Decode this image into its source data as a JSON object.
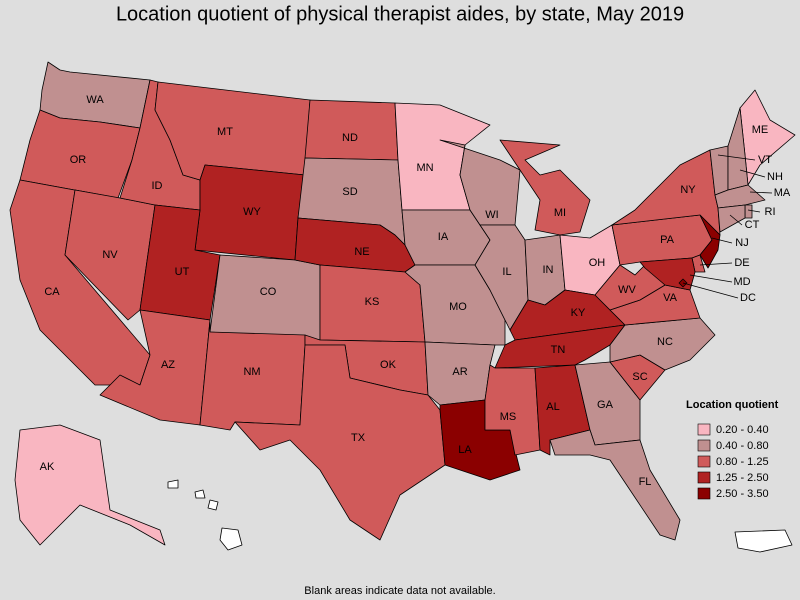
{
  "title": "Location quotient of physical therapist aides, by state, May 2019",
  "footnote": "Blank areas indicate data not available.",
  "legend": {
    "title": "Location quotient",
    "classes": [
      {
        "label": "0.20 - 0.40",
        "color": "#f9b6c1"
      },
      {
        "label": "0.40 - 0.80",
        "color": "#c09090"
      },
      {
        "label": "0.80 - 1.25",
        "color": "#d05a5a"
      },
      {
        "label": "1.25 - 2.50",
        "color": "#b02222"
      },
      {
        "label": "2.50 - 3.50",
        "color": "#8b0000"
      }
    ]
  },
  "states": [
    {
      "abbr": "WA",
      "class": 1
    },
    {
      "abbr": "OR",
      "class": 2
    },
    {
      "abbr": "CA",
      "class": 2
    },
    {
      "abbr": "NV",
      "class": 2
    },
    {
      "abbr": "ID",
      "class": 2
    },
    {
      "abbr": "MT",
      "class": 2
    },
    {
      "abbr": "WY",
      "class": 3
    },
    {
      "abbr": "UT",
      "class": 3
    },
    {
      "abbr": "CO",
      "class": 1
    },
    {
      "abbr": "AZ",
      "class": 2
    },
    {
      "abbr": "NM",
      "class": 2
    },
    {
      "abbr": "ND",
      "class": 2
    },
    {
      "abbr": "SD",
      "class": 1
    },
    {
      "abbr": "NE",
      "class": 3
    },
    {
      "abbr": "KS",
      "class": 2
    },
    {
      "abbr": "OK",
      "class": 2
    },
    {
      "abbr": "TX",
      "class": 2
    },
    {
      "abbr": "MN",
      "class": 0
    },
    {
      "abbr": "IA",
      "class": 1
    },
    {
      "abbr": "MO",
      "class": 1
    },
    {
      "abbr": "AR",
      "class": 1
    },
    {
      "abbr": "LA",
      "class": 4
    },
    {
      "abbr": "WI",
      "class": 1
    },
    {
      "abbr": "IL",
      "class": 1
    },
    {
      "abbr": "MI",
      "class": 2
    },
    {
      "abbr": "IN",
      "class": 1
    },
    {
      "abbr": "OH",
      "class": 0
    },
    {
      "abbr": "KY",
      "class": 3
    },
    {
      "abbr": "TN",
      "class": 3
    },
    {
      "abbr": "MS",
      "class": 2
    },
    {
      "abbr": "AL",
      "class": 3
    },
    {
      "abbr": "GA",
      "class": 1
    },
    {
      "abbr": "FL",
      "class": 1
    },
    {
      "abbr": "SC",
      "class": 2
    },
    {
      "abbr": "NC",
      "class": 1
    },
    {
      "abbr": "VA",
      "class": 2
    },
    {
      "abbr": "WV",
      "class": 2
    },
    {
      "abbr": "PA",
      "class": 2
    },
    {
      "abbr": "NY",
      "class": 2
    },
    {
      "abbr": "ME",
      "class": 0
    },
    {
      "abbr": "VT",
      "class": 1
    },
    {
      "abbr": "NH",
      "class": 1
    },
    {
      "abbr": "MA",
      "class": 1
    },
    {
      "abbr": "RI",
      "class": 1
    },
    {
      "abbr": "CT",
      "class": 1
    },
    {
      "abbr": "NJ",
      "class": 4
    },
    {
      "abbr": "DE",
      "class": 2
    },
    {
      "abbr": "MD",
      "class": 3
    },
    {
      "abbr": "DC",
      "class": 4
    },
    {
      "abbr": "AK",
      "class": 0
    }
  ]
}
